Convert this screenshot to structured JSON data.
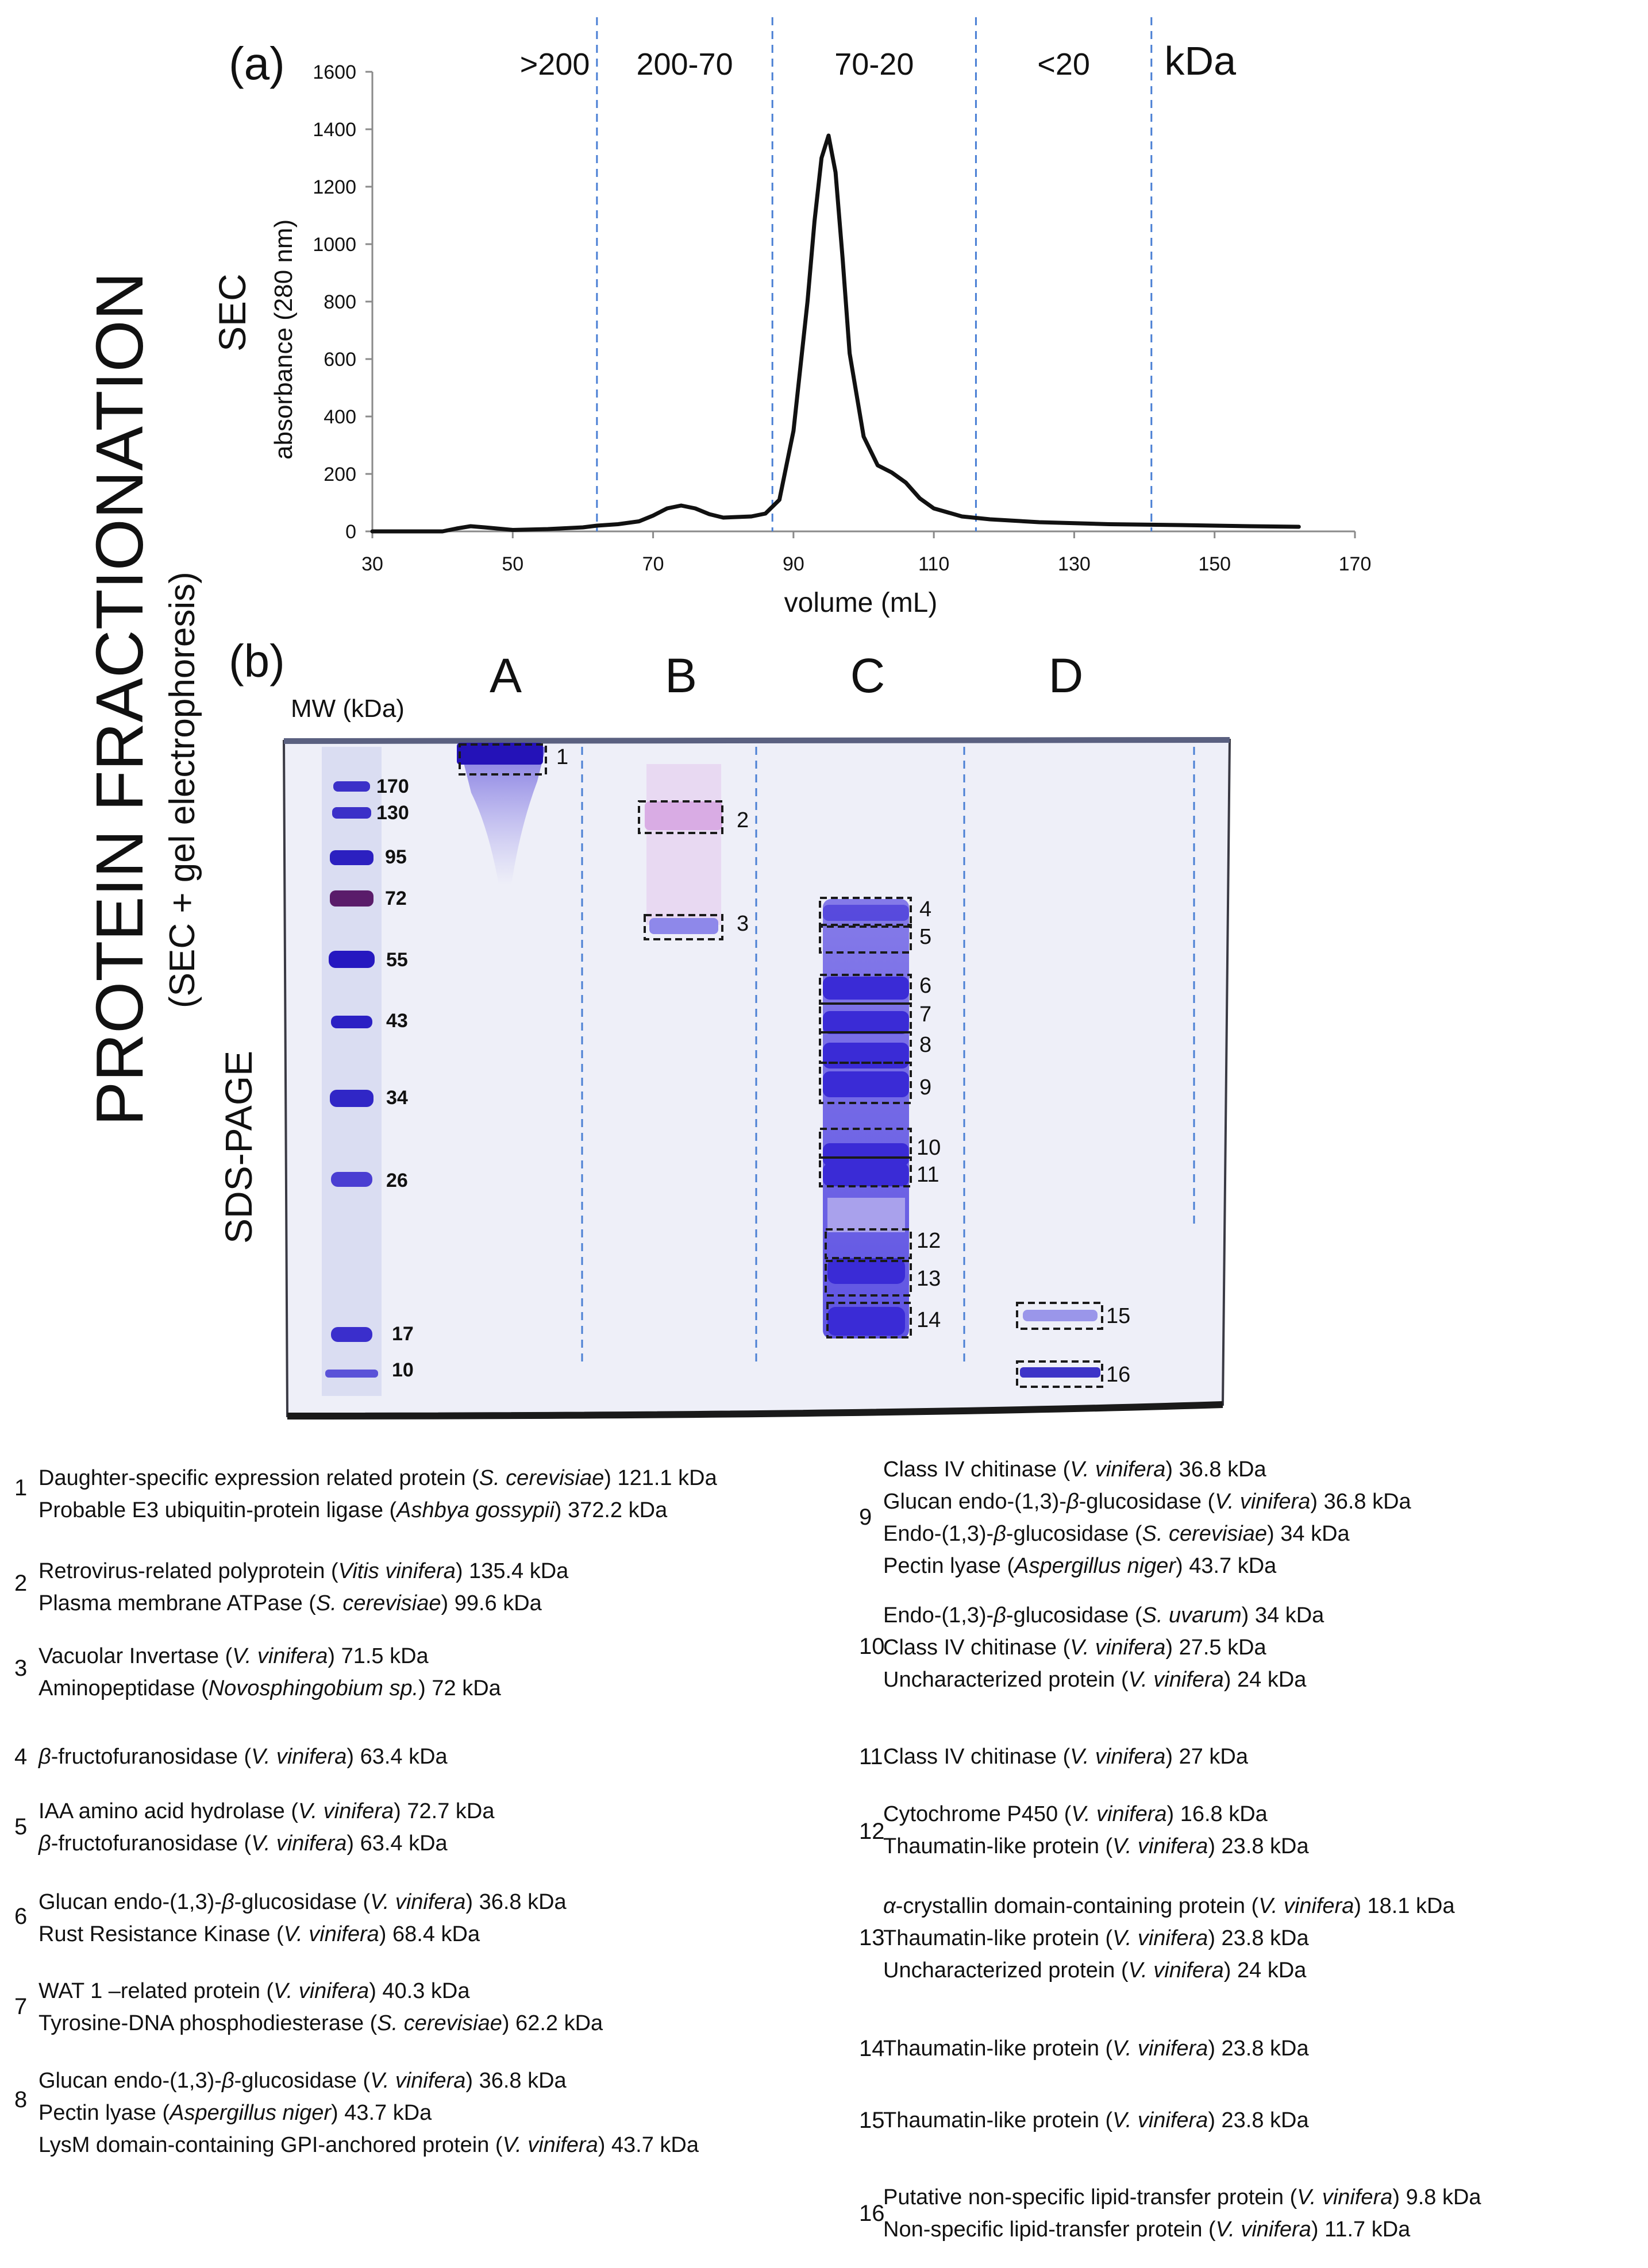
{
  "side_title": "PROTEIN FRACTIONATION",
  "side_subtitle": "(SEC + gel electrophoresis)",
  "chart_data": {
    "type": "line",
    "panel": "(a)",
    "title": "SEC",
    "ylabel": "absorbance (280 nm)",
    "xlabel": "volume (mL)",
    "xlim": [
      30,
      170
    ],
    "ylim": [
      0,
      1600
    ],
    "x_ticks": [
      30,
      50,
      70,
      90,
      110,
      130,
      150,
      170
    ],
    "y_ticks": [
      0,
      200,
      400,
      600,
      800,
      1000,
      1200,
      1400,
      1600
    ],
    "fraction_boundaries": [
      62,
      87,
      116,
      141
    ],
    "fraction_labels": [
      ">200",
      "200-70",
      "70-20",
      "<20",
      "kDa"
    ],
    "series": [
      {
        "name": "absorbance",
        "x": [
          30,
          40,
          42,
          44,
          46,
          50,
          55,
          60,
          62,
          65,
          68,
          70,
          72,
          74,
          76,
          78,
          80,
          84,
          86,
          88,
          90,
          92,
          93,
          94,
          95,
          96,
          97,
          98,
          100,
          102,
          104,
          106,
          108,
          110,
          114,
          118,
          125,
          135,
          145,
          155,
          162
        ],
        "y": [
          0,
          0,
          10,
          18,
          14,
          5,
          8,
          14,
          20,
          25,
          35,
          55,
          80,
          90,
          80,
          60,
          48,
          52,
          62,
          110,
          350,
          800,
          1080,
          1300,
          1378,
          1250,
          950,
          620,
          330,
          230,
          205,
          170,
          115,
          80,
          52,
          42,
          32,
          25,
          22,
          18,
          16
        ]
      }
    ]
  },
  "gel": {
    "panel": "(b)",
    "label": "SDS-PAGE",
    "mw_label": "MW (kDa)",
    "markers": [
      "170",
      "130",
      "95",
      "72",
      "55",
      "43",
      "34",
      "26",
      "17",
      "10"
    ],
    "lanes": [
      "A",
      "B",
      "C",
      "D"
    ],
    "band_numbers": [
      "1",
      "2",
      "3",
      "4",
      "5",
      "6",
      "7",
      "8",
      "9",
      "10",
      "11",
      "12",
      "13",
      "14",
      "15",
      "16"
    ]
  },
  "proteins": [
    {
      "num": "1",
      "lines": [
        [
          {
            "t": "Daughter-specific expression related protein ("
          },
          {
            "t": "S. cerevisiae",
            "i": true
          },
          {
            "t": ") 121.1 kDa"
          }
        ],
        [
          {
            "t": "Probable E3 ubiquitin-protein ligase ("
          },
          {
            "t": "Ashbya gossypii",
            "i": true
          },
          {
            "t": ") 372.2 kDa"
          }
        ]
      ]
    },
    {
      "num": "2",
      "lines": [
        [
          {
            "t": "Retrovirus-related polyprotein ("
          },
          {
            "t": "Vitis vinifera",
            "i": true
          },
          {
            "t": ") 135.4 kDa"
          }
        ],
        [
          {
            "t": "Plasma membrane ATPase ("
          },
          {
            "t": "S. cerevisiae",
            "i": true
          },
          {
            "t": ") 99.6 kDa"
          }
        ]
      ]
    },
    {
      "num": "3",
      "lines": [
        [
          {
            "t": "Vacuolar Invertase ("
          },
          {
            "t": "V. vinifera",
            "i": true
          },
          {
            "t": ") 71.5 kDa"
          }
        ],
        [
          {
            "t": "Aminopeptidase ("
          },
          {
            "t": "Novosphingobium sp.",
            "i": true
          },
          {
            "t": ") 72 kDa"
          }
        ]
      ]
    },
    {
      "num": "4",
      "lines": [
        [
          {
            "t": "β",
            "i": true
          },
          {
            "t": "-fructofuranosidase ("
          },
          {
            "t": "V. vinifera",
            "i": true
          },
          {
            "t": ") 63.4 kDa"
          }
        ]
      ]
    },
    {
      "num": "5",
      "lines": [
        [
          {
            "t": "IAA amino acid hydrolase ("
          },
          {
            "t": "V. vinifera",
            "i": true
          },
          {
            "t": ") 72.7 kDa"
          }
        ],
        [
          {
            "t": "β",
            "i": true
          },
          {
            "t": "-fructofuranosidase ("
          },
          {
            "t": "V. vinifera",
            "i": true
          },
          {
            "t": ") 63.4 kDa"
          }
        ]
      ]
    },
    {
      "num": "6",
      "lines": [
        [
          {
            "t": "Glucan endo-(1,3)-"
          },
          {
            "t": "β",
            "i": true
          },
          {
            "t": "-glucosidase ("
          },
          {
            "t": "V. vinifera",
            "i": true
          },
          {
            "t": ") 36.8 kDa"
          }
        ],
        [
          {
            "t": "Rust Resistance Kinase ("
          },
          {
            "t": "V. vinifera",
            "i": true
          },
          {
            "t": ")  68.4 kDa"
          }
        ]
      ]
    },
    {
      "num": "7",
      "lines": [
        [
          {
            "t": "WAT 1 –related protein ("
          },
          {
            "t": "V. vinifera",
            "i": true
          },
          {
            "t": ") 40.3 kDa"
          }
        ],
        [
          {
            "t": "Tyrosine-DNA phosphodiesterase ("
          },
          {
            "t": "S. cerevisiae",
            "i": true
          },
          {
            "t": ") 62.2 kDa"
          }
        ]
      ]
    },
    {
      "num": "8",
      "lines": [
        [
          {
            "t": "Glucan endo-(1,3)-"
          },
          {
            "t": "β",
            "i": true
          },
          {
            "t": "-glucosidase ("
          },
          {
            "t": "V. vinifera",
            "i": true
          },
          {
            "t": ") 36.8 kDa"
          }
        ],
        [
          {
            "t": "Pectin lyase ("
          },
          {
            "t": "Aspergillus niger",
            "i": true
          },
          {
            "t": ") 43.7 kDa"
          }
        ],
        [
          {
            "t": "LysM domain-containing GPI-anchored protein  ("
          },
          {
            "t": "V. vinifera",
            "i": true
          },
          {
            "t": ") 43.7 kDa"
          }
        ]
      ]
    },
    {
      "num": "9",
      "lines": [
        [
          {
            "t": "Class IV chitinase ("
          },
          {
            "t": "V. vinifera",
            "i": true
          },
          {
            "t": ") 36.8 kDa"
          }
        ],
        [
          {
            "t": "Glucan endo-(1,3)-"
          },
          {
            "t": "β",
            "i": true
          },
          {
            "t": "-glucosidase ("
          },
          {
            "t": "V. vinifera",
            "i": true
          },
          {
            "t": ") 36.8 kDa"
          }
        ],
        [
          {
            "t": "Endo-(1,3)-"
          },
          {
            "t": "β",
            "i": true
          },
          {
            "t": "-glucosidase ("
          },
          {
            "t": "S. cerevisiae",
            "i": true
          },
          {
            "t": ") 34 kDa"
          }
        ],
        [
          {
            "t": "Pectin lyase ("
          },
          {
            "t": "Aspergillus niger",
            "i": true
          },
          {
            "t": ") 43.7 kDa"
          }
        ]
      ]
    },
    {
      "num": "10",
      "lines": [
        [
          {
            "t": "Endo-(1,3)-"
          },
          {
            "t": "β",
            "i": true
          },
          {
            "t": "-glucosidase ("
          },
          {
            "t": "S. uvarum",
            "i": true
          },
          {
            "t": ") 34 kDa"
          }
        ],
        [
          {
            "t": "Class IV chitinase ("
          },
          {
            "t": "V. vinifera",
            "i": true
          },
          {
            "t": ") 27.5 kDa"
          }
        ],
        [
          {
            "t": "Uncharacterized protein ("
          },
          {
            "t": "V. vinifera",
            "i": true
          },
          {
            "t": ") 24 kDa"
          }
        ]
      ]
    },
    {
      "num": "11",
      "lines": [
        [
          {
            "t": "Class IV chitinase ("
          },
          {
            "t": "V. vinifera",
            "i": true
          },
          {
            "t": ") 27 kDa"
          }
        ]
      ]
    },
    {
      "num": "12",
      "lines": [
        [
          {
            "t": "Cytochrome P450 ("
          },
          {
            "t": "V. vinifera",
            "i": true
          },
          {
            "t": ") 16.8 kDa"
          }
        ],
        [
          {
            "t": "Thaumatin-like protein ("
          },
          {
            "t": "V. vinifera",
            "i": true
          },
          {
            "t": ") 23.8 kDa"
          }
        ]
      ]
    },
    {
      "num": "13",
      "lines": [
        [
          {
            "t": "α",
            "i": true
          },
          {
            "t": "-crystallin domain-containing protein ("
          },
          {
            "t": "V. vinifera",
            "i": true
          },
          {
            "t": ") 18.1 kDa"
          }
        ],
        [
          {
            "t": "Thaumatin-like protein ("
          },
          {
            "t": "V. vinifera",
            "i": true
          },
          {
            "t": ") 23.8 kDa"
          }
        ],
        [
          {
            "t": "Uncharacterized protein ("
          },
          {
            "t": "V. vinifera",
            "i": true
          },
          {
            "t": ") 24 kDa"
          }
        ]
      ]
    },
    {
      "num": "14",
      "lines": [
        [
          {
            "t": "Thaumatin-like protein ("
          },
          {
            "t": "V. vinifera",
            "i": true
          },
          {
            "t": ") 23.8 kDa"
          }
        ]
      ]
    },
    {
      "num": "15",
      "lines": [
        [
          {
            "t": "Thaumatin-like protein ("
          },
          {
            "t": "V. vinifera",
            "i": true
          },
          {
            "t": ") 23.8 kDa"
          }
        ]
      ]
    },
    {
      "num": "16",
      "lines": [
        [
          {
            "t": "Putative non-specific lipid-transfer protein ("
          },
          {
            "t": "V. vinifera",
            "i": true
          },
          {
            "t": ") 9.8 kDa"
          }
        ],
        [
          {
            "t": "Non-specific lipid-transfer protein  ("
          },
          {
            "t": "V. vinifera",
            "i": true
          },
          {
            "t": ")  11.7 kDa"
          }
        ]
      ]
    }
  ]
}
